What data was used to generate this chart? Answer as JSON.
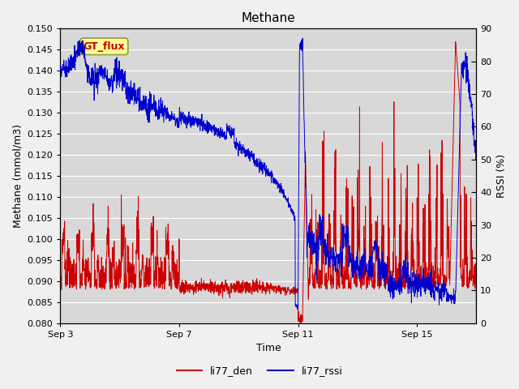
{
  "title": "Methane",
  "xlabel": "Time",
  "ylabel_left": "Methane (mmol/m3)",
  "ylabel_right": "RSSI (%)",
  "ylim_left": [
    0.08,
    0.15
  ],
  "ylim_right": [
    0,
    90
  ],
  "yticks_left": [
    0.08,
    0.085,
    0.09,
    0.095,
    0.1,
    0.105,
    0.11,
    0.115,
    0.12,
    0.125,
    0.13,
    0.135,
    0.14,
    0.145,
    0.15
  ],
  "yticks_right": [
    0,
    10,
    20,
    30,
    40,
    50,
    60,
    70,
    80,
    90
  ],
  "xtick_labels": [
    "Sep 3",
    "Sep 7",
    "Sep 11",
    "Sep 15"
  ],
  "xtick_positions": [
    0,
    4,
    8,
    12
  ],
  "color_den": "#cc0000",
  "color_rssi": "#0000cc",
  "legend_label_den": "li77_den",
  "legend_label_rssi": "li77_rssi",
  "gt_flux_label": "GT_flux",
  "gt_flux_bg": "#ffff99",
  "gt_flux_border": "#999933",
  "gt_flux_text_color": "#cc0000",
  "fig_bg": "#f0f0f0",
  "plot_bg": "#d8d8d8",
  "grid_color": "#ffffff",
  "title_fontsize": 11,
  "label_fontsize": 9,
  "tick_fontsize": 8,
  "legend_fontsize": 9
}
